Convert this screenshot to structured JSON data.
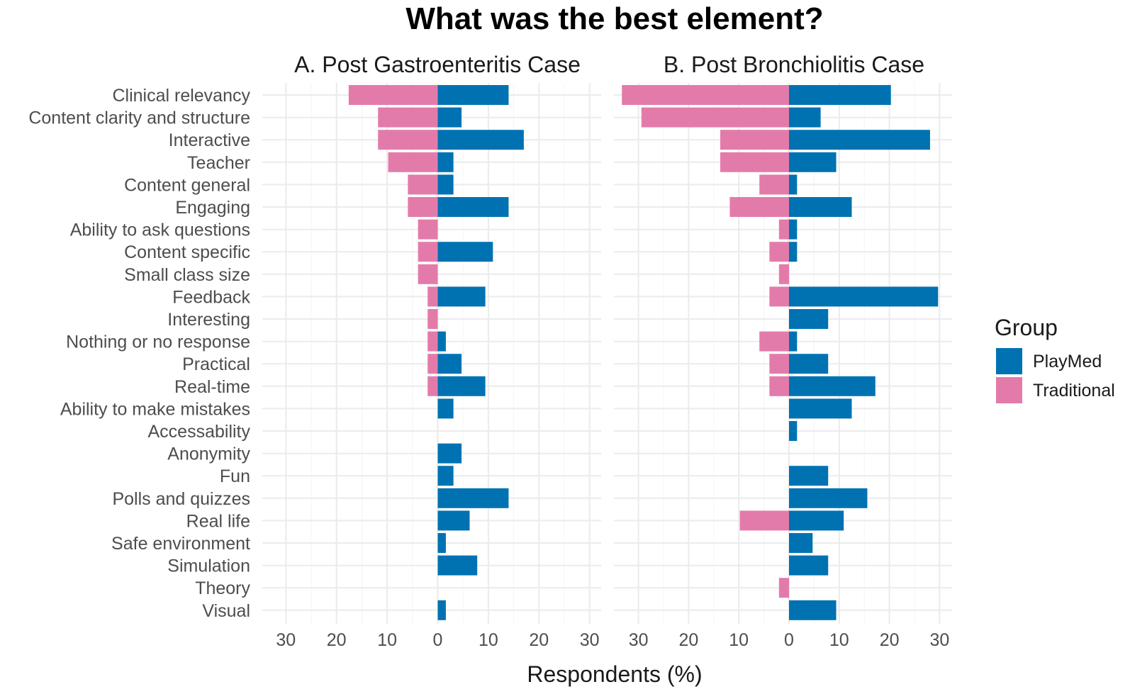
{
  "chart_data": {
    "type": "bar",
    "orientation": "horizontal",
    "title": "What was the best element?",
    "xlabel": "Respondents (%)",
    "xlim": [
      -30,
      30
    ],
    "x_ticks": [
      -30,
      -20,
      -10,
      0,
      10,
      20,
      30
    ],
    "x_tick_labels": [
      "30",
      "20",
      "10",
      "0",
      "10",
      "20",
      "30"
    ],
    "grid": true,
    "legend_position": "right",
    "legend": {
      "title": "Group",
      "entries": [
        {
          "name": "PlayMed",
          "color": "#0072B2"
        },
        {
          "name": "Traditional",
          "color": "#E37BAA"
        }
      ]
    },
    "categories": [
      "Clinical relevancy",
      "Content clarity and structure",
      "Interactive",
      "Teacher",
      "Content general",
      "Engaging",
      "Ability to ask questions",
      "Content specific",
      "Small class size",
      "Feedback",
      "Interesting",
      "Nothing or no response",
      "Practical",
      "Real-time",
      "Ability to make mistakes",
      "Accessability",
      "Anonymity",
      "Fun",
      "Polls and quizzes",
      "Real life",
      "Safe environment",
      "Simulation",
      "Theory",
      "Visual"
    ],
    "panels": [
      {
        "title": "A. Post Gastroenteritis Case",
        "series": [
          {
            "name": "PlayMed",
            "values": [
              14,
              4.7,
              17,
              3.1,
              3.1,
              14,
              0,
              10.9,
              0,
              9.4,
              0,
              1.6,
              4.7,
              9.4,
              3.1,
              0,
              4.7,
              3.1,
              14,
              6.3,
              1.6,
              7.8,
              0,
              1.6
            ]
          },
          {
            "name": "Traditional",
            "values": [
              17.6,
              11.8,
              11.8,
              9.8,
              5.9,
              5.9,
              3.9,
              3.9,
              3.9,
              2,
              2,
              2,
              2,
              2,
              0,
              0,
              0,
              0,
              0,
              0,
              0,
              0,
              0,
              0
            ]
          }
        ]
      },
      {
        "title": "B. Post Bronchiolitis Case",
        "series": [
          {
            "name": "PlayMed",
            "values": [
              20.3,
              6.3,
              28.1,
              9.4,
              1.6,
              12.5,
              1.6,
              1.6,
              0,
              29.7,
              7.8,
              1.6,
              7.8,
              17.2,
              12.5,
              1.6,
              0,
              7.8,
              15.6,
              10.9,
              4.7,
              7.8,
              0,
              9.4
            ]
          },
          {
            "name": "Traditional",
            "values": [
              33.3,
              29.4,
              13.7,
              13.7,
              5.9,
              11.8,
              2,
              3.9,
              2,
              3.9,
              0,
              5.9,
              3.9,
              3.9,
              0,
              0,
              0,
              0,
              0,
              9.8,
              0,
              0,
              2,
              0
            ]
          }
        ]
      }
    ]
  }
}
